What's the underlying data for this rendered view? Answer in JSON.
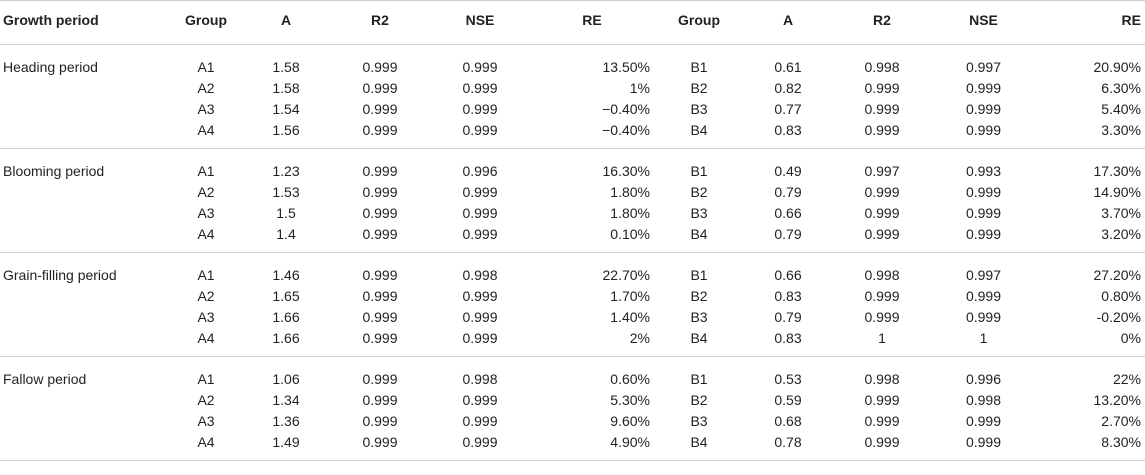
{
  "headers": [
    "Growth period",
    "Group",
    "A",
    "R2",
    "NSE",
    "RE",
    "Group",
    "A",
    "R2",
    "NSE",
    "RE"
  ],
  "periods": [
    {
      "name": "Heading period",
      "rows": [
        [
          "A1",
          "1.58",
          "0.999",
          "0.999",
          "13.50%",
          "B1",
          "0.61",
          "0.998",
          "0.997",
          "20.90%"
        ],
        [
          "A2",
          "1.58",
          "0.999",
          "0.999",
          "1%",
          "B2",
          "0.82",
          "0.999",
          "0.999",
          "6.30%"
        ],
        [
          "A3",
          "1.54",
          "0.999",
          "0.999",
          "−0.40%",
          "B3",
          "0.77",
          "0.999",
          "0.999",
          "5.40%"
        ],
        [
          "A4",
          "1.56",
          "0.999",
          "0.999",
          "−0.40%",
          "B4",
          "0.83",
          "0.999",
          "0.999",
          "3.30%"
        ]
      ]
    },
    {
      "name": "Blooming period",
      "rows": [
        [
          "A1",
          "1.23",
          "0.999",
          "0.996",
          "16.30%",
          "B1",
          "0.49",
          "0.997",
          "0.993",
          "17.30%"
        ],
        [
          "A2",
          "1.53",
          "0.999",
          "0.999",
          "1.80%",
          "B2",
          "0.79",
          "0.999",
          "0.999",
          "14.90%"
        ],
        [
          "A3",
          "1.5",
          "0.999",
          "0.999",
          "1.80%",
          "B3",
          "0.66",
          "0.999",
          "0.999",
          "3.70%"
        ],
        [
          "A4",
          "1.4",
          "0.999",
          "0.999",
          "0.10%",
          "B4",
          "0.79",
          "0.999",
          "0.999",
          "3.20%"
        ]
      ]
    },
    {
      "name": "Grain-filling period",
      "rows": [
        [
          "A1",
          "1.46",
          "0.999",
          "0.998",
          "22.70%",
          "B1",
          "0.66",
          "0.998",
          "0.997",
          "27.20%"
        ],
        [
          "A2",
          "1.65",
          "0.999",
          "0.999",
          "1.70%",
          "B2",
          "0.83",
          "0.999",
          "0.999",
          "0.80%"
        ],
        [
          "A3",
          "1.66",
          "0.999",
          "0.999",
          "1.40%",
          "B3",
          "0.79",
          "0.999",
          "0.999",
          "-0.20%"
        ],
        [
          "A4",
          "1.66",
          "0.999",
          "0.999",
          "2%",
          "B4",
          "0.83",
          "1",
          "1",
          "0%"
        ]
      ]
    },
    {
      "name": "Fallow period",
      "rows": [
        [
          "A1",
          "1.06",
          "0.999",
          "0.998",
          "0.60%",
          "B1",
          "0.53",
          "0.998",
          "0.996",
          "22%"
        ],
        [
          "A2",
          "1.34",
          "0.999",
          "0.999",
          "5.30%",
          "B2",
          "0.59",
          "0.999",
          "0.998",
          "13.20%"
        ],
        [
          "A3",
          "1.36",
          "0.999",
          "0.999",
          "9.60%",
          "B3",
          "0.68",
          "0.999",
          "0.999",
          "2.70%"
        ],
        [
          "A4",
          "1.49",
          "0.999",
          "0.999",
          "4.90%",
          "B4",
          "0.78",
          "0.999",
          "0.999",
          "8.30%"
        ]
      ]
    }
  ]
}
